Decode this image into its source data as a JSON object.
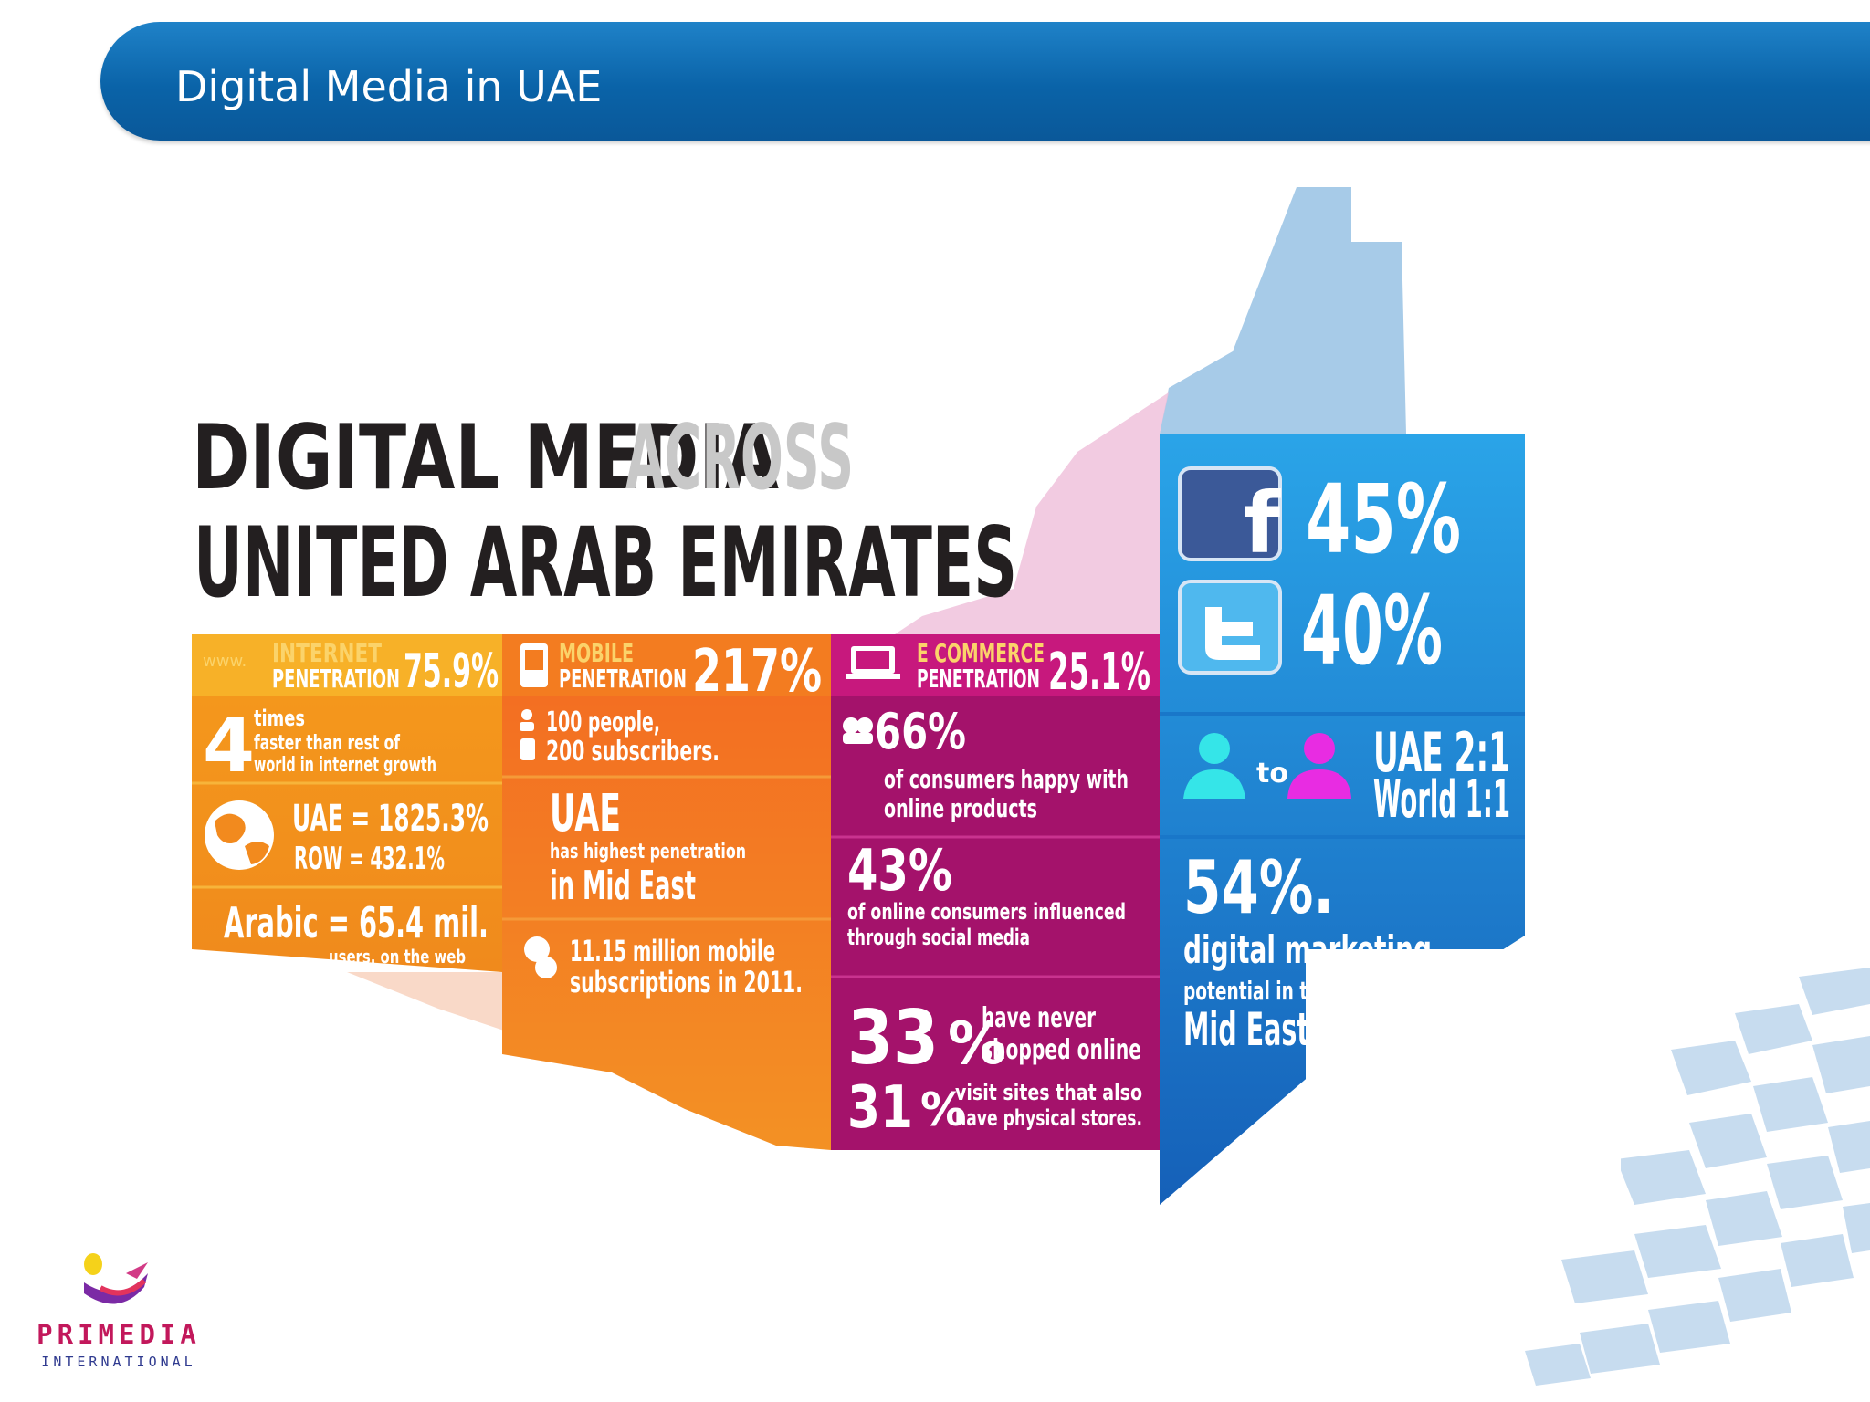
{
  "slide": {
    "title": "Digital Media in UAE"
  },
  "infographic": {
    "headline_line1_dark": "DIGITAL MEDIA",
    "headline_line1_light": "ACROSS",
    "headline_line2": "UNITED ARAB EMIRATES",
    "internet": {
      "www": "www.",
      "label1": "INTERNET",
      "label2": "PENETRATION",
      "value": "75.9%",
      "times_number": "4",
      "times_word": "times",
      "times_desc1": "faster than rest of",
      "times_desc2": "world in internet growth",
      "uae_growth": "UAE = 1825.3%",
      "row_growth": "ROW = 432.1%",
      "arabic": "Arabic = 65.4 mil.",
      "arabic_sub": "users. on the web"
    },
    "mobile": {
      "label1": "MOBILE",
      "label2": "PENETRATION",
      "value": "217%",
      "people": "100 people,",
      "subscribers": "200 subscribers.",
      "uae": "UAE",
      "uae_desc": "has highest penetration",
      "uae_region": "in Mid East",
      "subs1": "11.15 million mobile",
      "subs2": "subscriptions in 2011."
    },
    "ecommerce": {
      "label1": "E COMMERCE",
      "label2": "PENETRATION",
      "value": "25.1%",
      "happy_pct": "66%",
      "happy1": "of consumers happy with",
      "happy2": "online products",
      "social_pct": "43%",
      "social1": "of online consumers influenced",
      "social2": "through social media",
      "never_pct": "33",
      "never1": "have never",
      "never2": "shopped online",
      "visit_pct": "31",
      "visit1": "visit sites that also",
      "visit2": "have physical stores.",
      "pct_sign": "%"
    },
    "social": {
      "facebook_pct": "45%",
      "twitter_pct": "40%",
      "to": "to",
      "uae_ratio": "UAE 2:1",
      "world_ratio": "World 1:1",
      "dm_pct": "54%.",
      "dm1": "digital marketing",
      "dm2": "potential in the",
      "dm3": "Mid East"
    }
  },
  "logo": {
    "name": "PRIMEDIA",
    "sub": "INTERNATIONAL"
  },
  "colors": {
    "banner": "#0a63a8",
    "orange_light": "#f7a11a",
    "orange": "#f47b20",
    "orange_dark": "#ee5a24",
    "magenta": "#a4126b",
    "blue": "#1f8ed8",
    "blue_dark": "#1565c0",
    "map_blue": "#a7cbe8",
    "map_pink": "#f3c8e0"
  }
}
